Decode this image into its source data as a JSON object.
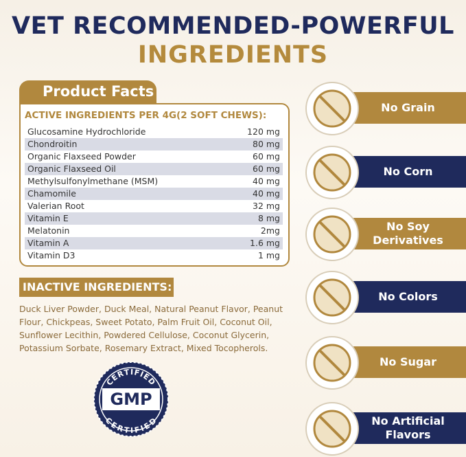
{
  "header": {
    "title_line1": "VET RECOMMENDED-POWERFUL",
    "title_line2": "INGREDIENTS"
  },
  "product_facts": {
    "heading": "Product Facts",
    "subheading": "ACTIVE INGREDIENTS PER 4G(2 SOFT CHEWS):",
    "rows": [
      [
        "Glucosamine Hydrochloride",
        "120 mg"
      ],
      [
        "Chondroitin",
        "80 mg"
      ],
      [
        "Organic Flaxseed Powder",
        "60 mg"
      ],
      [
        "Organic Flaxseed Oil",
        "60 mg"
      ],
      [
        "Methylsulfonylmethane (MSM)",
        "40 mg"
      ],
      [
        "Chamomile",
        "40 mg"
      ],
      [
        "Valerian Root",
        "32 mg"
      ],
      [
        "Vitamin E",
        "8 mg"
      ],
      [
        "Melatonin",
        "2mg"
      ],
      [
        "Vitamin A",
        "1.6 mg"
      ],
      [
        "Vitamin D3",
        "1 mg"
      ]
    ]
  },
  "inactive": {
    "heading": "INACTIVE INGREDIENTS:",
    "text": "Duck Liver Powder, Duck Meal, Natural Peanut Flavor, Peanut Flour, Chickpeas, Sweet Potato, Palm Fruit Oil, Coconut Oil, Sunflower Lecithin, Powdered Cellulose, Coconut Glycerin, Potassium Sorbate, Rosemary Extract, Mixed Tocopherols."
  },
  "badge": {
    "top": "CERTIFIED",
    "center": "GMP",
    "bottom": "CERTIFIED"
  },
  "features": [
    "No Grain",
    "No Corn",
    "No Soy Derivatives",
    "No Colors",
    "No Sugar",
    "No Artificial Flavors"
  ]
}
